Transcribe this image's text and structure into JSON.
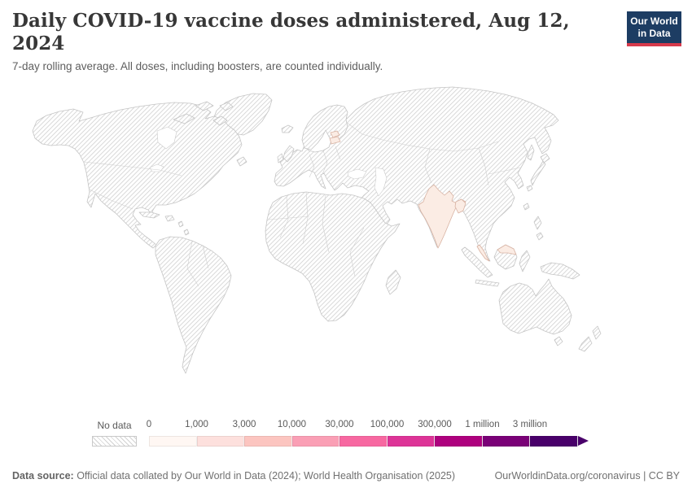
{
  "header": {
    "title": "Daily COVID-19 vaccine doses administered, Aug 12, 2024",
    "subtitle": "7-day rolling average. All doses, including boosters, are counted individually."
  },
  "logo": {
    "line1": "Our World",
    "line2": "in Data",
    "bg_color": "#1d3d63",
    "bar_color": "#d73a4b"
  },
  "map": {
    "highlight_color": "#fbece4",
    "highlight_border": "#d8b2a2",
    "no_data_pattern": "gray-diagonal-hatch",
    "highlighted_countries": [
      "India",
      "Bangladesh",
      "Estonia",
      "Latvia",
      "Malaysia"
    ]
  },
  "legend": {
    "no_data_label": "No data",
    "tick_labels": [
      "0",
      "1,000",
      "3,000",
      "10,000",
      "30,000",
      "100,000",
      "300,000",
      "1 million",
      "3 million"
    ],
    "colors": [
      "#fff7f3",
      "#fde0dd",
      "#fcc5c0",
      "#fa9fb5",
      "#f768a1",
      "#dd3497",
      "#ae017e",
      "#7a0177",
      "#49006a"
    ]
  },
  "footer": {
    "source_label": "Data source:",
    "source_text": " Official data collated by Our World in Data (2024); World Health Organisation (2025)",
    "link": "OurWorldinData.org/coronavirus",
    "license": " | CC BY"
  },
  "chart_data": {
    "type": "heatmap",
    "subtype": "choropleth-world-map",
    "title": "Daily COVID-19 vaccine doses administered, Aug 12, 2024",
    "subtitle": "7-day rolling average. All doses, including boosters, are counted individually.",
    "legend_bins": [
      "0",
      "1,000",
      "3,000",
      "10,000",
      "30,000",
      "100,000",
      "300,000",
      "1 million",
      "3 million"
    ],
    "legend_colors": [
      "#fff7f3",
      "#fde0dd",
      "#fcc5c0",
      "#fa9fb5",
      "#f768a1",
      "#dd3497",
      "#ae017e",
      "#7a0177",
      "#49006a"
    ],
    "values": [
      {
        "entity": "India",
        "bin": "0-1,000",
        "fill": "light-pink"
      },
      {
        "entity": "Bangladesh",
        "bin": "0-1,000",
        "fill": "light-pink"
      },
      {
        "entity": "Estonia",
        "bin": "0-1,000",
        "fill": "light-pink"
      },
      {
        "entity": "Latvia",
        "bin": "0-1,000",
        "fill": "light-pink"
      },
      {
        "entity": "Malaysia",
        "bin": "0-1,000",
        "fill": "light-pink"
      },
      {
        "entity": "All other countries",
        "bin": "No data",
        "fill": "hatched"
      }
    ],
    "legend_position": "bottom"
  }
}
